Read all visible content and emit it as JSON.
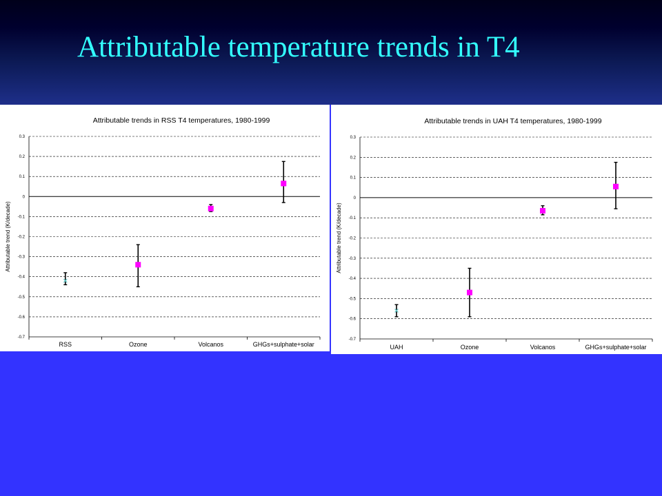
{
  "slide": {
    "title": "Attributable temperature trends in T4"
  },
  "colors": {
    "marker_model": "#ff00ff",
    "marker_observed": "#66cccc",
    "error_bar": "#000000"
  },
  "chart_data": [
    {
      "type": "scatter",
      "title": "Attributable trends in RSS T4 temperatures, 1980-1999",
      "xlabel": "",
      "ylabel": "Attributable trend (K/decade)",
      "ylim": [
        -0.7,
        0.3
      ],
      "yticks": [
        "0.3",
        "0.2",
        "0.1",
        "0",
        "-0.1",
        "-0.2",
        "-0.3",
        "-0.4",
        "-0.5",
        "-0.6",
        "-0.7"
      ],
      "grid": true,
      "categories": [
        "RSS",
        "Ozone",
        "Volcanos",
        "GHGs+sulphate+solar"
      ],
      "values": [
        -0.42,
        -0.34,
        -0.06,
        0.065
      ],
      "error_low": [
        -0.44,
        -0.45,
        -0.075,
        -0.03
      ],
      "error_high": [
        -0.38,
        -0.24,
        -0.04,
        0.175
      ],
      "marker_kinds": [
        "observed",
        "model",
        "model",
        "model"
      ]
    },
    {
      "type": "scatter",
      "title": "Attributable trends in UAH T4 temperatures, 1980-1999",
      "xlabel": "",
      "ylabel": "Attributable trend (K/decade)",
      "ylim": [
        -0.7,
        0.3
      ],
      "yticks": [
        "0.3",
        "0.2",
        "0.1",
        "0",
        "-0.1",
        "-0.2",
        "-0.3",
        "-0.4",
        "-0.5",
        "-0.6",
        "-0.7"
      ],
      "grid": true,
      "categories": [
        "UAH",
        "Ozone",
        "Volcanos",
        "GHGs+sulphate+solar"
      ],
      "values": [
        -0.56,
        -0.47,
        -0.065,
        0.055
      ],
      "error_low": [
        -0.59,
        -0.59,
        -0.085,
        -0.055
      ],
      "error_high": [
        -0.53,
        -0.35,
        -0.04,
        0.175
      ],
      "marker_kinds": [
        "observed",
        "model",
        "model",
        "model"
      ]
    }
  ]
}
